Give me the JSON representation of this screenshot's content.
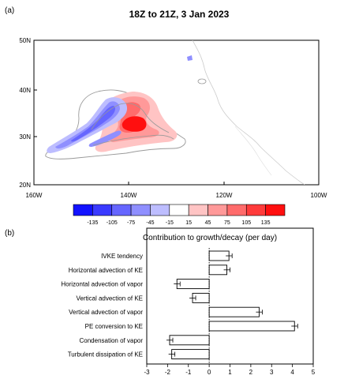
{
  "panel_a": {
    "label": "(a)",
    "title": "18Z to 21Z, 3 Jan 2023",
    "lat_ticks": [
      "50N",
      "40N",
      "30N",
      "20N"
    ],
    "lon_ticks": [
      "160W",
      "140W",
      "120W",
      "100W"
    ],
    "colorbar": {
      "labels": [
        "-135",
        "-105",
        "-75",
        "-45",
        "-15",
        "15",
        "45",
        "75",
        "105",
        "135"
      ],
      "colors": [
        "#1212ff",
        "#3a3aff",
        "#6666ff",
        "#8f8fff",
        "#bdbdff",
        "#ffffff",
        "#ffc4c4",
        "#ff9999",
        "#ff6b6b",
        "#ff3b3b",
        "#ff0f0f"
      ]
    }
  },
  "panel_b": {
    "label": "(b)",
    "chart_data": {
      "type": "bar",
      "orientation": "horizontal",
      "title": "Contribution to growth/decay (per day)",
      "categories": [
        "IVKE tendency",
        "Horizontal advection of KE",
        "Horizontal advection of vapor",
        "Vertical advection of KE",
        "Vertical advection of vapor",
        "PE conversion to KE",
        "Condensation of vapor",
        "Turbulent dissipation of KE"
      ],
      "values": [
        0.95,
        0.85,
        -1.55,
        -0.8,
        2.4,
        4.1,
        -1.9,
        -1.8
      ],
      "xlim": [
        -3,
        5
      ],
      "xticks": [
        "-3",
        "-2",
        "-1",
        "0",
        "1",
        "2",
        "3",
        "4",
        "5"
      ]
    }
  }
}
